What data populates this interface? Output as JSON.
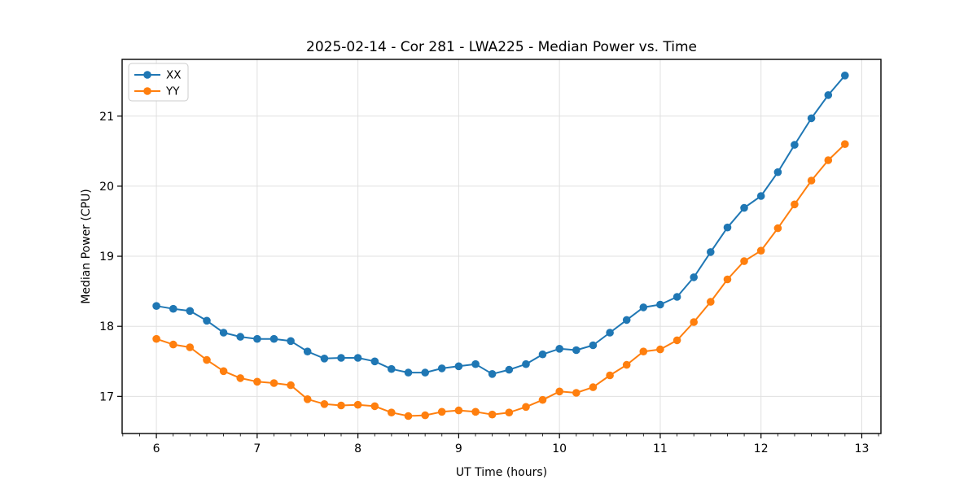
{
  "chart_data": {
    "type": "line",
    "title": "2025-02-14 - Cor 281 - LWA225 - Median Power vs. Time",
    "xlabel": "UT Time (hours)",
    "ylabel": "Median Power (CPU)",
    "xlim": [
      5.66,
      13.19
    ],
    "ylim": [
      16.47,
      21.81
    ],
    "xticks": [
      6,
      7,
      8,
      9,
      10,
      11,
      12,
      13
    ],
    "yticks": [
      17,
      18,
      19,
      20,
      21
    ],
    "x_minor_step": 0.166667,
    "grid": true,
    "grid_color": "#e0e0e0",
    "legend_position": "upper-left",
    "marker": "circle",
    "x": [
      6.0,
      6.167,
      6.333,
      6.5,
      6.667,
      6.833,
      7.0,
      7.167,
      7.333,
      7.5,
      7.667,
      7.833,
      8.0,
      8.167,
      8.333,
      8.5,
      8.667,
      8.833,
      9.0,
      9.167,
      9.333,
      9.5,
      9.667,
      9.833,
      10.0,
      10.167,
      10.333,
      10.5,
      10.667,
      10.833,
      11.0,
      11.167,
      11.333,
      11.5,
      11.667,
      11.833,
      12.0,
      12.167,
      12.333,
      12.5,
      12.667,
      12.833
    ],
    "series": [
      {
        "name": "XX",
        "color": "#1f77b4",
        "values": [
          18.29,
          18.25,
          18.22,
          18.08,
          17.91,
          17.85,
          17.82,
          17.82,
          17.79,
          17.64,
          17.54,
          17.55,
          17.55,
          17.5,
          17.39,
          17.34,
          17.34,
          17.4,
          17.43,
          17.46,
          17.32,
          17.38,
          17.46,
          17.6,
          17.68,
          17.66,
          17.73,
          17.91,
          18.09,
          18.27,
          18.31,
          18.42,
          18.7,
          19.06,
          19.41,
          19.69,
          19.86,
          20.2,
          20.59,
          20.97,
          21.3,
          21.58
        ]
      },
      {
        "name": "YY",
        "color": "#ff7f0e",
        "values": [
          17.82,
          17.74,
          17.7,
          17.52,
          17.36,
          17.26,
          17.21,
          17.19,
          17.16,
          16.96,
          16.89,
          16.87,
          16.88,
          16.86,
          16.77,
          16.72,
          16.73,
          16.78,
          16.8,
          16.78,
          16.74,
          16.77,
          16.85,
          16.95,
          17.07,
          17.05,
          17.13,
          17.3,
          17.45,
          17.64,
          17.67,
          17.8,
          18.06,
          18.35,
          18.67,
          18.93,
          19.08,
          19.4,
          19.74,
          20.08,
          20.37,
          20.6
        ]
      }
    ]
  }
}
